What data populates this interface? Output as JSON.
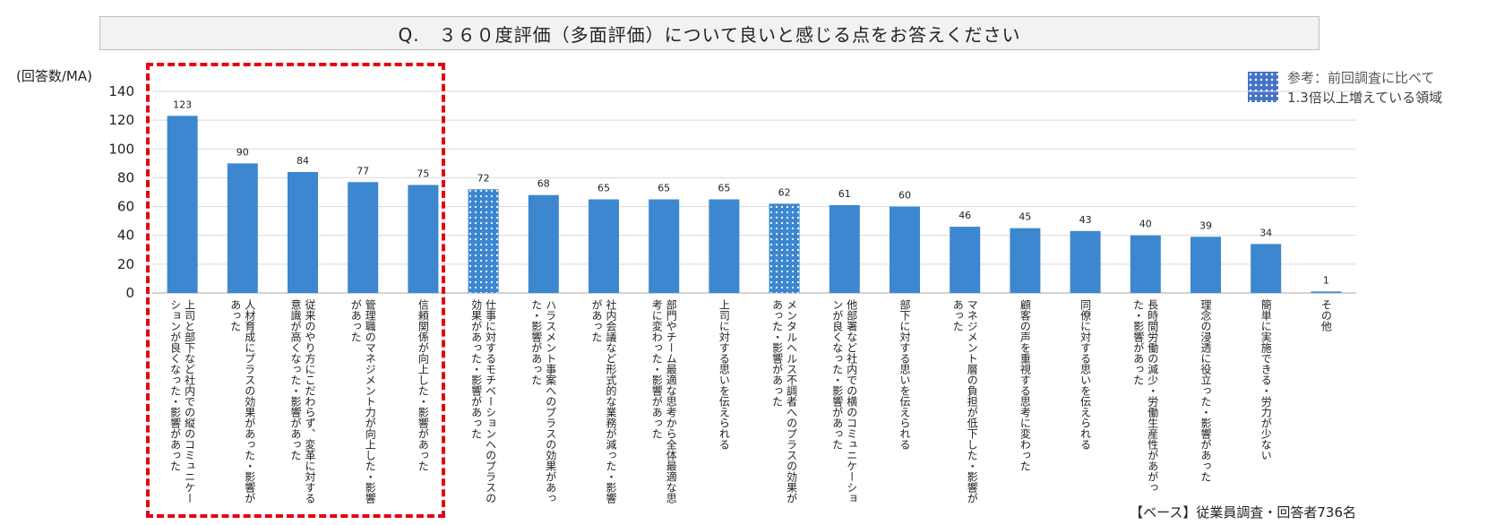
{
  "title": "Q.　３６０度評価（多面評価）について良いと感じる点をお答えください",
  "unit_label": "(回答数/MA)",
  "legend": {
    "line1": "参考：前回調査に比べて",
    "line2": "1.3倍以上増えている領域",
    "swatch_color": "#4472c4"
  },
  "base_note": "【ベース】従業員調査・回答者736名",
  "colors": {
    "bar": "#3c87d0",
    "highlight_border": "#e60012"
  },
  "chart_data": {
    "type": "bar",
    "title": "Q.　３６０度評価（多面評価）について良いと感じる点をお答えください",
    "ylabel": "(回答数/MA)",
    "ylim": [
      0,
      140
    ],
    "yticks": [
      "0",
      "20",
      "40",
      "60",
      "80",
      "100",
      "120",
      "140"
    ],
    "categories": [
      "上司と部下など社内での縦のコミュニケー\nションが良くなった・影響があった",
      "人材育成にプラスの効果があった・影響が\nあった",
      "従来のやり方にこだわらず、変革に対する\n意識が高くなった・影響があった",
      "管理職のマネジメント力が向上した・影響\nがあった",
      "信頼関係が向上した・影響があった",
      "仕事に対するモチベーションへのプラスの\n効果があった・影響があった",
      "ハラスメント事案へのプラスの効果があっ\nた・影響があった",
      "社内会議など形式的な業務が減った・影響\nがあった",
      "部門やチーム最適な思考から全体最適な思\n考に変わった・影響があった",
      "上司に対する思いを伝えられる",
      "メンタルヘルス不調者へのプラスの効果が\nあった・影響があった",
      "他部署など社内での横のコミュニケーショ\nンが良くなった・影響があった",
      "部下に対する思いを伝えられる",
      "マネジメント層の負担が低下した・影響が\nあった",
      "顧客の声を重視する思考に変わった",
      "同僚に対する思いを伝えられる",
      "長時間労働の減少・労働生産性があがっ\nた・影響があった",
      "理念の浸透に役立った・影響があった",
      "簡単に実施できる・労力が少ない",
      "その他"
    ],
    "values": [
      123,
      90,
      84,
      77,
      75,
      72,
      68,
      65,
      65,
      65,
      62,
      61,
      60,
      46,
      45,
      43,
      40,
      39,
      34,
      1
    ],
    "increased_1_3x": [
      false,
      false,
      false,
      false,
      false,
      true,
      false,
      false,
      false,
      false,
      true,
      false,
      false,
      false,
      false,
      false,
      false,
      false,
      false,
      false
    ],
    "highlighted_categories": [
      0,
      1,
      2,
      3,
      4
    ],
    "grid": true
  }
}
